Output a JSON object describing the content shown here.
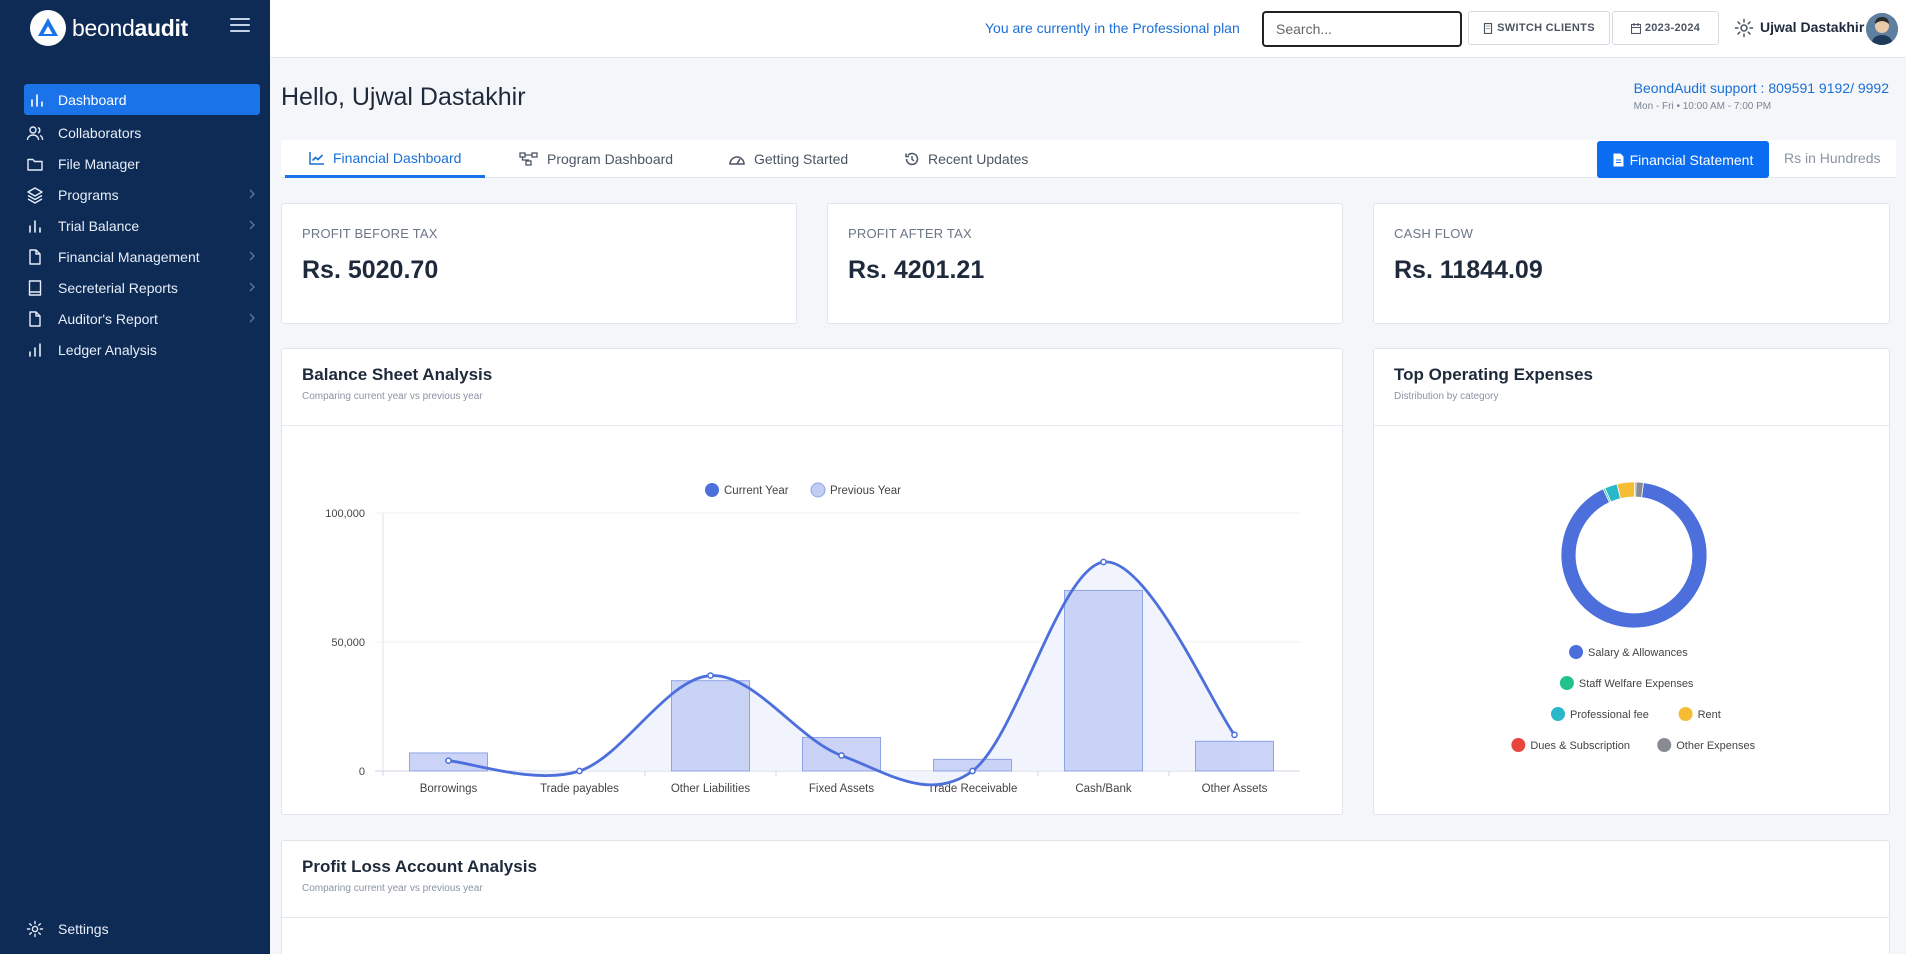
{
  "sidebar": {
    "brand_prefix": "beond",
    "brand_suffix": "audit",
    "items": [
      {
        "label": "Dashboard",
        "icon": "bar-chart-icon",
        "active": true
      },
      {
        "label": "Collaborators",
        "icon": "users-icon"
      },
      {
        "label": "File Manager",
        "icon": "folder-icon"
      },
      {
        "label": "Programs",
        "icon": "layers-icon",
        "has_submenu": true
      },
      {
        "label": "Trial Balance",
        "icon": "bar-chart-icon",
        "has_submenu": true
      },
      {
        "label": "Financial Management",
        "icon": "file-icon",
        "has_submenu": true
      },
      {
        "label": "Secreterial Reports",
        "icon": "book-icon",
        "has_submenu": true
      },
      {
        "label": "Auditor's Report",
        "icon": "file-icon",
        "has_submenu": true
      },
      {
        "label": "Ledger Analysis",
        "icon": "bar-chart-icon"
      }
    ],
    "settings_label": "Settings"
  },
  "topbar": {
    "plan_text": "You are currently in the Professional plan",
    "search_placeholder": "Search...",
    "switch_clients": "SWITCH CLIENTS",
    "year": "2023-2024",
    "user_name": "Ujwal Dastakhir"
  },
  "header": {
    "greeting": "Hello, Ujwal Dastakhir",
    "support": "BeondAudit support : 809591 9192/ 9992",
    "hours": "Mon - Fri • 10:00 AM - 7:00 PM"
  },
  "tabs": [
    {
      "label": "Financial Dashboard",
      "icon": "trend-line-icon",
      "active": true
    },
    {
      "label": "Program Dashboard",
      "icon": "hierarchy-icon"
    },
    {
      "label": "Getting Started",
      "icon": "gauge-icon"
    },
    {
      "label": "Recent Updates",
      "icon": "history-icon"
    }
  ],
  "actions": {
    "financial_statement": "Financial Statement",
    "units": "Rs in Hundreds"
  },
  "kpis": [
    {
      "label": "PROFIT BEFORE TAX",
      "value": "Rs. 5020.70"
    },
    {
      "label": "PROFIT AFTER TAX",
      "value": "Rs. 4201.21"
    },
    {
      "label": "CASH FLOW",
      "value": "Rs. 11844.09"
    }
  ],
  "balance_sheet": {
    "title": "Balance Sheet Analysis",
    "subtitle": "Comparing current year vs previous year"
  },
  "operating_expenses": {
    "title": "Top Operating Expenses",
    "subtitle": "Distribution by category"
  },
  "profit_loss": {
    "title": "Profit Loss Account Analysis",
    "subtitle": "Comparing current year vs previous year"
  },
  "colors": {
    "sidebar_bg": "#0d2b55",
    "accent": "#1a73e8",
    "current_year": "#4c6fdc",
    "previous_year": "#c2cdf4"
  },
  "chart_data": [
    {
      "type": "bar",
      "categories": [
        "Borrowings",
        "Trade payables",
        "Other Liabilities",
        "Fixed Assets",
        "Trade Receivable",
        "Cash/Bank",
        "Other Assets"
      ],
      "series": [
        {
          "name": "Current Year",
          "type": "line",
          "color": "#4c6fdc",
          "values": [
            4000,
            0,
            37000,
            6000,
            0,
            81000,
            14000
          ]
        },
        {
          "name": "Previous Year",
          "type": "bar",
          "color": "#c2cdf4",
          "values": [
            7000,
            0,
            35000,
            13000,
            4500,
            70000,
            11500
          ]
        }
      ],
      "yticks": [
        "0",
        "50,000",
        "100,000"
      ],
      "ylim": [
        0,
        100000
      ],
      "legend": "top-center",
      "grid": true
    },
    {
      "type": "pie",
      "variant": "donut",
      "legend": "bottom",
      "slices": [
        {
          "label": "Salary & Allowances",
          "value": 91,
          "color": "#4c6fdc"
        },
        {
          "label": "Staff Welfare Expenses",
          "value": 0.4,
          "color": "#21c28e"
        },
        {
          "label": "Professional fee",
          "value": 2.8,
          "color": "#2ab7c9"
        },
        {
          "label": "Rent",
          "value": 3.9,
          "color": "#f6bc33"
        },
        {
          "label": "Dues & Subscription",
          "value": 0.3,
          "color": "#e8453c"
        },
        {
          "label": "Other Expenses",
          "value": 1.6,
          "color": "#888a94"
        }
      ]
    }
  ]
}
